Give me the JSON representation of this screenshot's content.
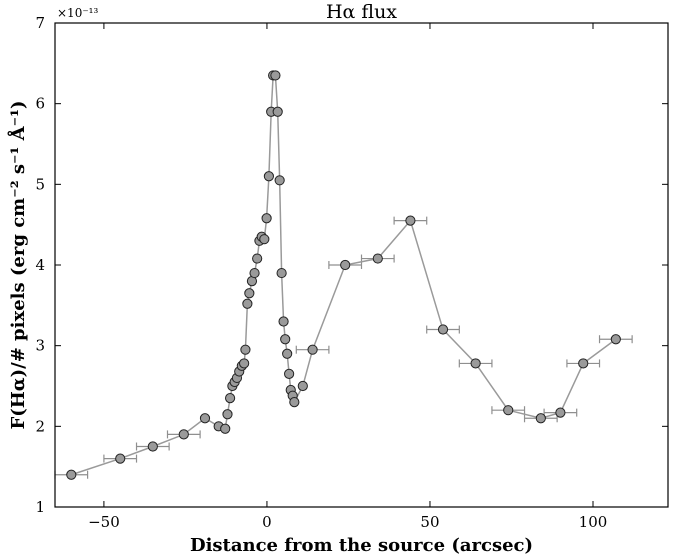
{
  "chart_data": {
    "type": "scatter",
    "title": "Hα flux",
    "xlabel": "Distance from the source (arcsec)",
    "ylabel": "F(Hα)/# pixels (erg cm⁻² s⁻¹ Å⁻¹)",
    "y_multiplier": "×10⁻¹³",
    "xlim": [
      -65,
      123
    ],
    "ylim": [
      1,
      7
    ],
    "xticks": [
      -50,
      0,
      50,
      100
    ],
    "yticks": [
      1,
      2,
      3,
      4,
      5,
      6,
      7
    ],
    "grid": false,
    "colors": {
      "line": "#9a9a9a",
      "marker_fill": "#9a9a9a",
      "marker_edge": "#222222",
      "errorbar": "#8f8f8f"
    },
    "series": [
      {
        "x": [
          -60.0,
          -45.0,
          -35.0,
          -25.5,
          -19.0,
          -14.8,
          -12.8,
          -12.1,
          -11.3,
          -10.6,
          -9.9,
          -9.2,
          -8.5,
          -7.7,
          -7.0,
          -6.6,
          -6.0,
          -5.4,
          -4.6,
          -3.8,
          -3.0,
          -2.3,
          -1.6,
          -0.8,
          -0.1,
          0.6,
          1.3,
          1.9,
          2.6,
          3.3,
          3.9,
          4.5,
          5.1,
          5.6,
          6.2,
          6.8,
          7.3,
          7.9,
          8.4,
          11.0,
          14.0,
          24.0,
          34.0,
          44.0,
          54.0,
          64.0,
          74.0,
          84.0,
          90.0,
          97.0,
          107.0
        ],
        "y": [
          1.4,
          1.6,
          1.75,
          1.9,
          2.1,
          2.0,
          1.97,
          2.15,
          2.35,
          2.5,
          2.55,
          2.6,
          2.68,
          2.75,
          2.78,
          2.95,
          3.52,
          3.65,
          3.8,
          3.9,
          4.08,
          4.3,
          4.35,
          4.32,
          4.58,
          5.1,
          5.9,
          6.35,
          6.35,
          5.9,
          5.05,
          3.9,
          3.3,
          3.08,
          2.9,
          2.65,
          2.45,
          2.38,
          2.3,
          2.5,
          2.95,
          4.0,
          4.08,
          4.55,
          3.2,
          2.78,
          2.2,
          2.1,
          2.17,
          2.78,
          3.08
        ],
        "xerr": [
          5,
          5,
          5,
          5,
          0,
          0,
          0,
          0,
          0,
          0,
          0,
          0,
          0,
          0,
          0,
          0,
          0,
          0,
          0,
          0,
          0,
          0,
          0,
          0,
          0,
          0,
          0,
          0,
          0,
          0,
          0,
          0,
          0,
          0,
          0,
          0,
          0,
          0,
          0,
          0,
          5,
          5,
          5,
          5,
          5,
          5,
          5,
          5,
          5,
          5,
          5
        ]
      }
    ]
  }
}
